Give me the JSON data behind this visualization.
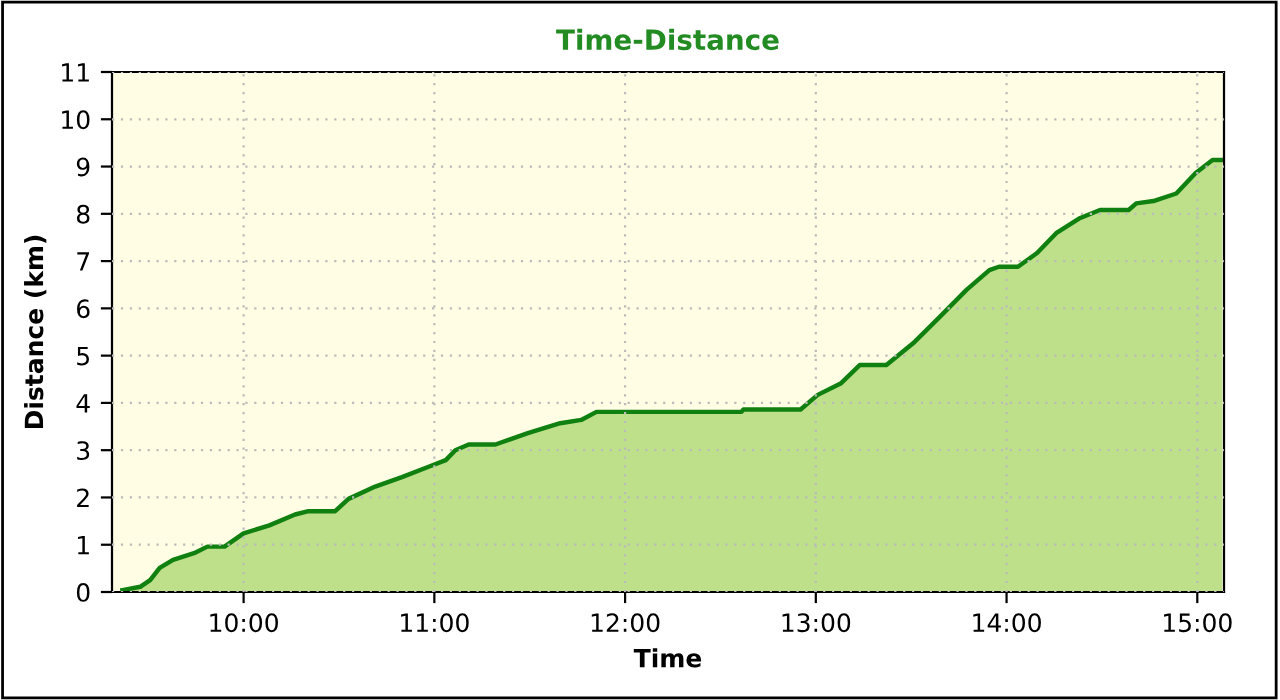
{
  "chart_data": {
    "type": "area",
    "title": "Time-Distance",
    "xlabel": "Time",
    "ylabel": "Distance (km)",
    "x": [
      9.365,
      9.458,
      9.51,
      9.56,
      9.63,
      9.74,
      9.81,
      9.9,
      10.0,
      10.135,
      10.27,
      10.34,
      10.48,
      10.55,
      10.69,
      10.83,
      10.97,
      11.06,
      11.11,
      11.18,
      11.32,
      11.49,
      11.66,
      11.77,
      11.85,
      12.0,
      12.61,
      12.62,
      12.92,
      13.01,
      13.13,
      13.23,
      13.37,
      13.51,
      13.65,
      13.79,
      13.91,
      13.96,
      14.06,
      14.16,
      14.26,
      14.38,
      14.49,
      14.64,
      14.68,
      14.77,
      14.89,
      14.99,
      15.08,
      15.13
    ],
    "series": [
      {
        "color": "#108010",
        "values": [
          0.04,
          0.11,
          0.25,
          0.51,
          0.68,
          0.82,
          0.96,
          0.96,
          1.24,
          1.41,
          1.64,
          1.71,
          1.71,
          1.97,
          2.23,
          2.43,
          2.65,
          2.79,
          3.0,
          3.12,
          3.12,
          3.36,
          3.57,
          3.64,
          3.81,
          3.81,
          3.81,
          3.86,
          3.86,
          4.17,
          4.41,
          4.8,
          4.8,
          5.26,
          5.82,
          6.39,
          6.81,
          6.88,
          6.88,
          7.17,
          7.59,
          7.9,
          8.08,
          8.08,
          8.22,
          8.27,
          8.43,
          8.86,
          9.14,
          9.14
        ]
      }
    ],
    "xlim": [
      9.31,
      15.14
    ],
    "xticks": [
      {
        "value": 10,
        "label": "10:00"
      },
      {
        "value": 11,
        "label": "11:00"
      },
      {
        "value": 12,
        "label": "12:00"
      },
      {
        "value": 13,
        "label": "13:00"
      },
      {
        "value": 14,
        "label": "14:00"
      },
      {
        "value": 15,
        "label": "15:00"
      }
    ],
    "ylim": [
      0,
      11
    ],
    "yticks": [
      0,
      1,
      2,
      3,
      4,
      5,
      6,
      7,
      8,
      9,
      10,
      11
    ],
    "grid": true
  }
}
